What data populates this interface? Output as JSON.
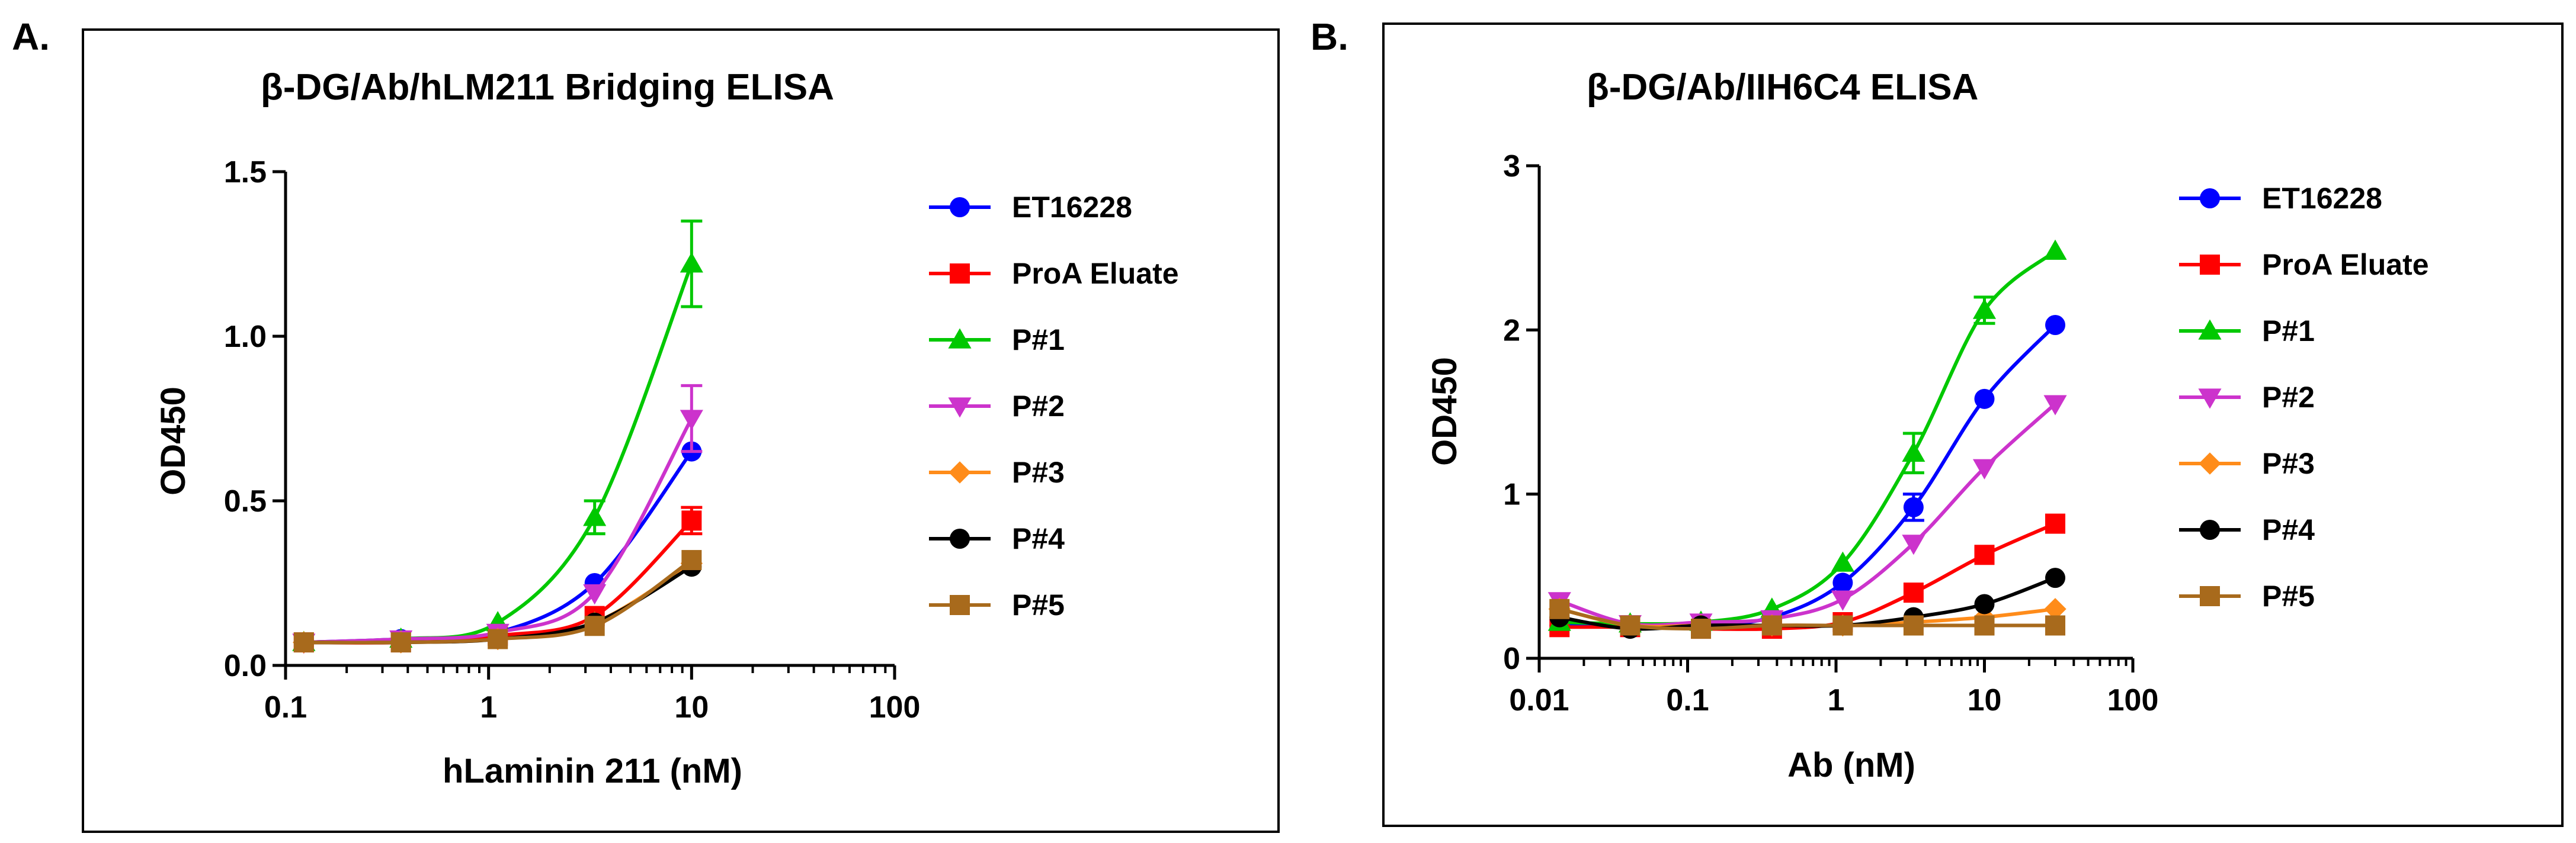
{
  "chart_data": [
    {
      "panel": "A.",
      "type": "line",
      "title": "β-DG/Ab/hLM211 Bridging ELISA",
      "xlabel": "hLaminin 211 (nM)",
      "ylabel": "OD450",
      "xscale": "log",
      "xlim": [
        0.1,
        100
      ],
      "ylim": [
        0,
        1.5
      ],
      "xticks": [
        0.1,
        1,
        10,
        100
      ],
      "xtick_labels": [
        "0.1",
        "1",
        "10",
        "100"
      ],
      "yticks": [
        0,
        0.5,
        1.0,
        1.5
      ],
      "ytick_labels": [
        "0.0",
        "0.5",
        "1.0",
        "1.5"
      ],
      "legend_position": "right",
      "x": [
        0.123,
        0.37,
        1.11,
        3.33,
        10
      ],
      "series": [
        {
          "name": "ET16228",
          "color": "#0000ff",
          "marker": "circle",
          "values": [
            0.07,
            0.08,
            0.1,
            0.25,
            0.65
          ],
          "errors": [
            0,
            0,
            0,
            0,
            0
          ]
        },
        {
          "name": "ProA Eluate",
          "color": "#ff0000",
          "marker": "square",
          "values": [
            0.07,
            0.07,
            0.09,
            0.15,
            0.44
          ],
          "errors": [
            0,
            0,
            0,
            0,
            0.04
          ]
        },
        {
          "name": "P#1",
          "color": "#00c800",
          "marker": "triangle-up",
          "values": [
            0.07,
            0.08,
            0.13,
            0.45,
            1.22
          ],
          "errors": [
            0,
            0,
            0,
            0.05,
            0.13
          ]
        },
        {
          "name": "P#2",
          "color": "#cc33cc",
          "marker": "triangle-down",
          "values": [
            0.07,
            0.08,
            0.1,
            0.22,
            0.75
          ],
          "errors": [
            0,
            0,
            0,
            0,
            0.1
          ]
        },
        {
          "name": "P#3",
          "color": "#ff8c1a",
          "marker": "diamond",
          "values": [
            0.07,
            0.07,
            0.08,
            0.13,
            0.31
          ],
          "errors": [
            0,
            0,
            0,
            0,
            0
          ]
        },
        {
          "name": "P#4",
          "color": "#000000",
          "marker": "circle",
          "values": [
            0.07,
            0.07,
            0.08,
            0.13,
            0.3
          ],
          "errors": [
            0,
            0,
            0,
            0,
            0
          ]
        },
        {
          "name": "P#5",
          "color": "#a86a1c",
          "marker": "square",
          "values": [
            0.07,
            0.07,
            0.08,
            0.12,
            0.32
          ],
          "errors": [
            0,
            0,
            0,
            0,
            0
          ]
        }
      ]
    },
    {
      "panel": "B.",
      "type": "line",
      "title": "β-DG/Ab/IIH6C4 ELISA",
      "xlabel": "Ab (nM)",
      "ylabel": "OD450",
      "xscale": "log",
      "xlim": [
        0.01,
        100
      ],
      "ylim": [
        0,
        3
      ],
      "xticks": [
        0.01,
        0.1,
        1,
        10,
        100
      ],
      "xtick_labels": [
        "0.01",
        "0.1",
        "1",
        "10",
        "100"
      ],
      "yticks": [
        0,
        1,
        2,
        3
      ],
      "ytick_labels": [
        "0",
        "1",
        "2",
        "3"
      ],
      "legend_position": "right",
      "x": [
        0.0137,
        0.041,
        0.123,
        0.37,
        1.11,
        3.33,
        10,
        30
      ],
      "series": [
        {
          "name": "ET16228",
          "color": "#0000ff",
          "marker": "circle",
          "values": [
            0.2,
            0.2,
            0.2,
            0.25,
            0.46,
            0.92,
            1.58,
            2.03
          ],
          "errors": [
            0,
            0,
            0,
            0,
            0,
            0.08,
            0,
            0
          ]
        },
        {
          "name": "ProA Eluate",
          "color": "#ff0000",
          "marker": "square",
          "values": [
            0.19,
            0.19,
            0.18,
            0.18,
            0.22,
            0.4,
            0.63,
            0.82
          ],
          "errors": [
            0,
            0,
            0,
            0,
            0,
            0,
            0,
            0
          ]
        },
        {
          "name": "P#1",
          "color": "#00c800",
          "marker": "triangle-up",
          "values": [
            0.22,
            0.21,
            0.22,
            0.3,
            0.58,
            1.25,
            2.12,
            2.48
          ],
          "errors": [
            0,
            0,
            0,
            0,
            0,
            0.12,
            0.08,
            0
          ]
        },
        {
          "name": "P#2",
          "color": "#cc33cc",
          "marker": "triangle-down",
          "values": [
            0.35,
            0.21,
            0.22,
            0.24,
            0.36,
            0.7,
            1.16,
            1.55
          ],
          "errors": [
            0,
            0,
            0,
            0,
            0,
            0,
            0,
            0
          ]
        },
        {
          "name": "P#3",
          "color": "#ff8c1a",
          "marker": "diamond",
          "values": [
            0.3,
            0.2,
            0.2,
            0.2,
            0.2,
            0.22,
            0.25,
            0.3
          ],
          "errors": [
            0,
            0,
            0,
            0,
            0,
            0,
            0,
            0
          ]
        },
        {
          "name": "P#4",
          "color": "#000000",
          "marker": "circle",
          "values": [
            0.25,
            0.18,
            0.2,
            0.2,
            0.2,
            0.25,
            0.33,
            0.49
          ],
          "errors": [
            0,
            0,
            0,
            0,
            0,
            0,
            0,
            0
          ]
        },
        {
          "name": "P#5",
          "color": "#a86a1c",
          "marker": "square",
          "values": [
            0.3,
            0.2,
            0.18,
            0.2,
            0.2,
            0.2,
            0.2,
            0.2
          ],
          "errors": [
            0,
            0,
            0,
            0,
            0,
            0,
            0,
            0
          ]
        }
      ]
    }
  ]
}
